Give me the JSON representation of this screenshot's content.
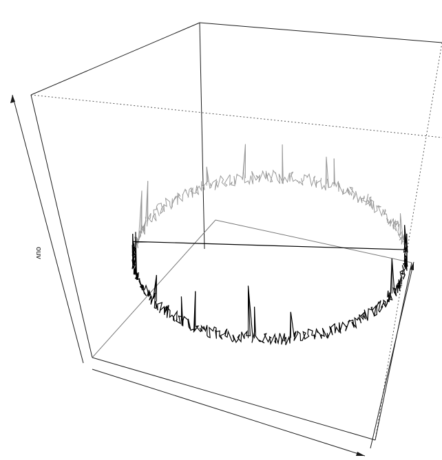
{
  "chart_data": {
    "type": "3d-line",
    "title": "",
    "zlabel": "ouv",
    "grid": false,
    "series": [
      {
        "values": []
      }
    ],
    "noise": {
      "ring_samples": 720,
      "typical_amplitude": 0.18,
      "spike_probability": 0.02,
      "spike_amplitude": 0.9
    }
  },
  "colors": {
    "box_line": "#1a1a1a",
    "back_dotted": "#555555",
    "front_trace": "#000000",
    "back_trace": "#9a9a9a",
    "background": "#ffffff"
  }
}
